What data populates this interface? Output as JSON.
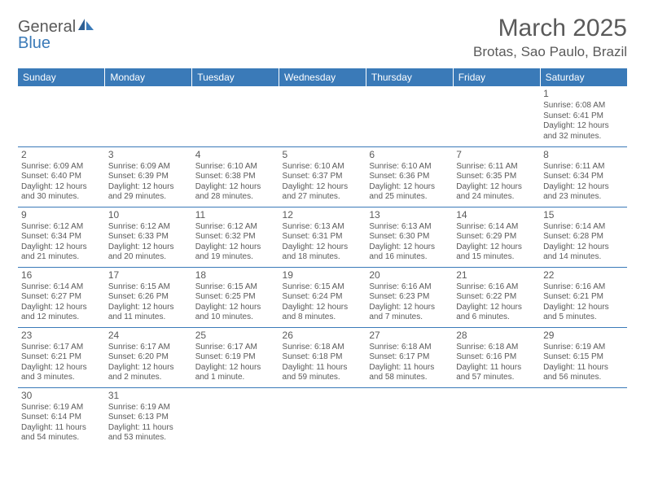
{
  "logo": {
    "text1": "General",
    "text2": "Blue"
  },
  "title": "March 2025",
  "location": "Brotas, Sao Paulo, Brazil",
  "colors": {
    "header_bg": "#3a7ab8",
    "text": "#5a5a5a",
    "border": "#3a7ab8"
  },
  "dayHeaders": [
    "Sunday",
    "Monday",
    "Tuesday",
    "Wednesday",
    "Thursday",
    "Friday",
    "Saturday"
  ],
  "weeks": [
    [
      null,
      null,
      null,
      null,
      null,
      null,
      {
        "n": "1",
        "sr": "Sunrise: 6:08 AM",
        "ss": "Sunset: 6:41 PM",
        "dl1": "Daylight: 12 hours",
        "dl2": "and 32 minutes."
      }
    ],
    [
      {
        "n": "2",
        "sr": "Sunrise: 6:09 AM",
        "ss": "Sunset: 6:40 PM",
        "dl1": "Daylight: 12 hours",
        "dl2": "and 30 minutes."
      },
      {
        "n": "3",
        "sr": "Sunrise: 6:09 AM",
        "ss": "Sunset: 6:39 PM",
        "dl1": "Daylight: 12 hours",
        "dl2": "and 29 minutes."
      },
      {
        "n": "4",
        "sr": "Sunrise: 6:10 AM",
        "ss": "Sunset: 6:38 PM",
        "dl1": "Daylight: 12 hours",
        "dl2": "and 28 minutes."
      },
      {
        "n": "5",
        "sr": "Sunrise: 6:10 AM",
        "ss": "Sunset: 6:37 PM",
        "dl1": "Daylight: 12 hours",
        "dl2": "and 27 minutes."
      },
      {
        "n": "6",
        "sr": "Sunrise: 6:10 AM",
        "ss": "Sunset: 6:36 PM",
        "dl1": "Daylight: 12 hours",
        "dl2": "and 25 minutes."
      },
      {
        "n": "7",
        "sr": "Sunrise: 6:11 AM",
        "ss": "Sunset: 6:35 PM",
        "dl1": "Daylight: 12 hours",
        "dl2": "and 24 minutes."
      },
      {
        "n": "8",
        "sr": "Sunrise: 6:11 AM",
        "ss": "Sunset: 6:34 PM",
        "dl1": "Daylight: 12 hours",
        "dl2": "and 23 minutes."
      }
    ],
    [
      {
        "n": "9",
        "sr": "Sunrise: 6:12 AM",
        "ss": "Sunset: 6:34 PM",
        "dl1": "Daylight: 12 hours",
        "dl2": "and 21 minutes."
      },
      {
        "n": "10",
        "sr": "Sunrise: 6:12 AM",
        "ss": "Sunset: 6:33 PM",
        "dl1": "Daylight: 12 hours",
        "dl2": "and 20 minutes."
      },
      {
        "n": "11",
        "sr": "Sunrise: 6:12 AM",
        "ss": "Sunset: 6:32 PM",
        "dl1": "Daylight: 12 hours",
        "dl2": "and 19 minutes."
      },
      {
        "n": "12",
        "sr": "Sunrise: 6:13 AM",
        "ss": "Sunset: 6:31 PM",
        "dl1": "Daylight: 12 hours",
        "dl2": "and 18 minutes."
      },
      {
        "n": "13",
        "sr": "Sunrise: 6:13 AM",
        "ss": "Sunset: 6:30 PM",
        "dl1": "Daylight: 12 hours",
        "dl2": "and 16 minutes."
      },
      {
        "n": "14",
        "sr": "Sunrise: 6:14 AM",
        "ss": "Sunset: 6:29 PM",
        "dl1": "Daylight: 12 hours",
        "dl2": "and 15 minutes."
      },
      {
        "n": "15",
        "sr": "Sunrise: 6:14 AM",
        "ss": "Sunset: 6:28 PM",
        "dl1": "Daylight: 12 hours",
        "dl2": "and 14 minutes."
      }
    ],
    [
      {
        "n": "16",
        "sr": "Sunrise: 6:14 AM",
        "ss": "Sunset: 6:27 PM",
        "dl1": "Daylight: 12 hours",
        "dl2": "and 12 minutes."
      },
      {
        "n": "17",
        "sr": "Sunrise: 6:15 AM",
        "ss": "Sunset: 6:26 PM",
        "dl1": "Daylight: 12 hours",
        "dl2": "and 11 minutes."
      },
      {
        "n": "18",
        "sr": "Sunrise: 6:15 AM",
        "ss": "Sunset: 6:25 PM",
        "dl1": "Daylight: 12 hours",
        "dl2": "and 10 minutes."
      },
      {
        "n": "19",
        "sr": "Sunrise: 6:15 AM",
        "ss": "Sunset: 6:24 PM",
        "dl1": "Daylight: 12 hours",
        "dl2": "and 8 minutes."
      },
      {
        "n": "20",
        "sr": "Sunrise: 6:16 AM",
        "ss": "Sunset: 6:23 PM",
        "dl1": "Daylight: 12 hours",
        "dl2": "and 7 minutes."
      },
      {
        "n": "21",
        "sr": "Sunrise: 6:16 AM",
        "ss": "Sunset: 6:22 PM",
        "dl1": "Daylight: 12 hours",
        "dl2": "and 6 minutes."
      },
      {
        "n": "22",
        "sr": "Sunrise: 6:16 AM",
        "ss": "Sunset: 6:21 PM",
        "dl1": "Daylight: 12 hours",
        "dl2": "and 5 minutes."
      }
    ],
    [
      {
        "n": "23",
        "sr": "Sunrise: 6:17 AM",
        "ss": "Sunset: 6:21 PM",
        "dl1": "Daylight: 12 hours",
        "dl2": "and 3 minutes."
      },
      {
        "n": "24",
        "sr": "Sunrise: 6:17 AM",
        "ss": "Sunset: 6:20 PM",
        "dl1": "Daylight: 12 hours",
        "dl2": "and 2 minutes."
      },
      {
        "n": "25",
        "sr": "Sunrise: 6:17 AM",
        "ss": "Sunset: 6:19 PM",
        "dl1": "Daylight: 12 hours",
        "dl2": "and 1 minute."
      },
      {
        "n": "26",
        "sr": "Sunrise: 6:18 AM",
        "ss": "Sunset: 6:18 PM",
        "dl1": "Daylight: 11 hours",
        "dl2": "and 59 minutes."
      },
      {
        "n": "27",
        "sr": "Sunrise: 6:18 AM",
        "ss": "Sunset: 6:17 PM",
        "dl1": "Daylight: 11 hours",
        "dl2": "and 58 minutes."
      },
      {
        "n": "28",
        "sr": "Sunrise: 6:18 AM",
        "ss": "Sunset: 6:16 PM",
        "dl1": "Daylight: 11 hours",
        "dl2": "and 57 minutes."
      },
      {
        "n": "29",
        "sr": "Sunrise: 6:19 AM",
        "ss": "Sunset: 6:15 PM",
        "dl1": "Daylight: 11 hours",
        "dl2": "and 56 minutes."
      }
    ],
    [
      {
        "n": "30",
        "sr": "Sunrise: 6:19 AM",
        "ss": "Sunset: 6:14 PM",
        "dl1": "Daylight: 11 hours",
        "dl2": "and 54 minutes."
      },
      {
        "n": "31",
        "sr": "Sunrise: 6:19 AM",
        "ss": "Sunset: 6:13 PM",
        "dl1": "Daylight: 11 hours",
        "dl2": "and 53 minutes."
      },
      null,
      null,
      null,
      null,
      null
    ]
  ]
}
